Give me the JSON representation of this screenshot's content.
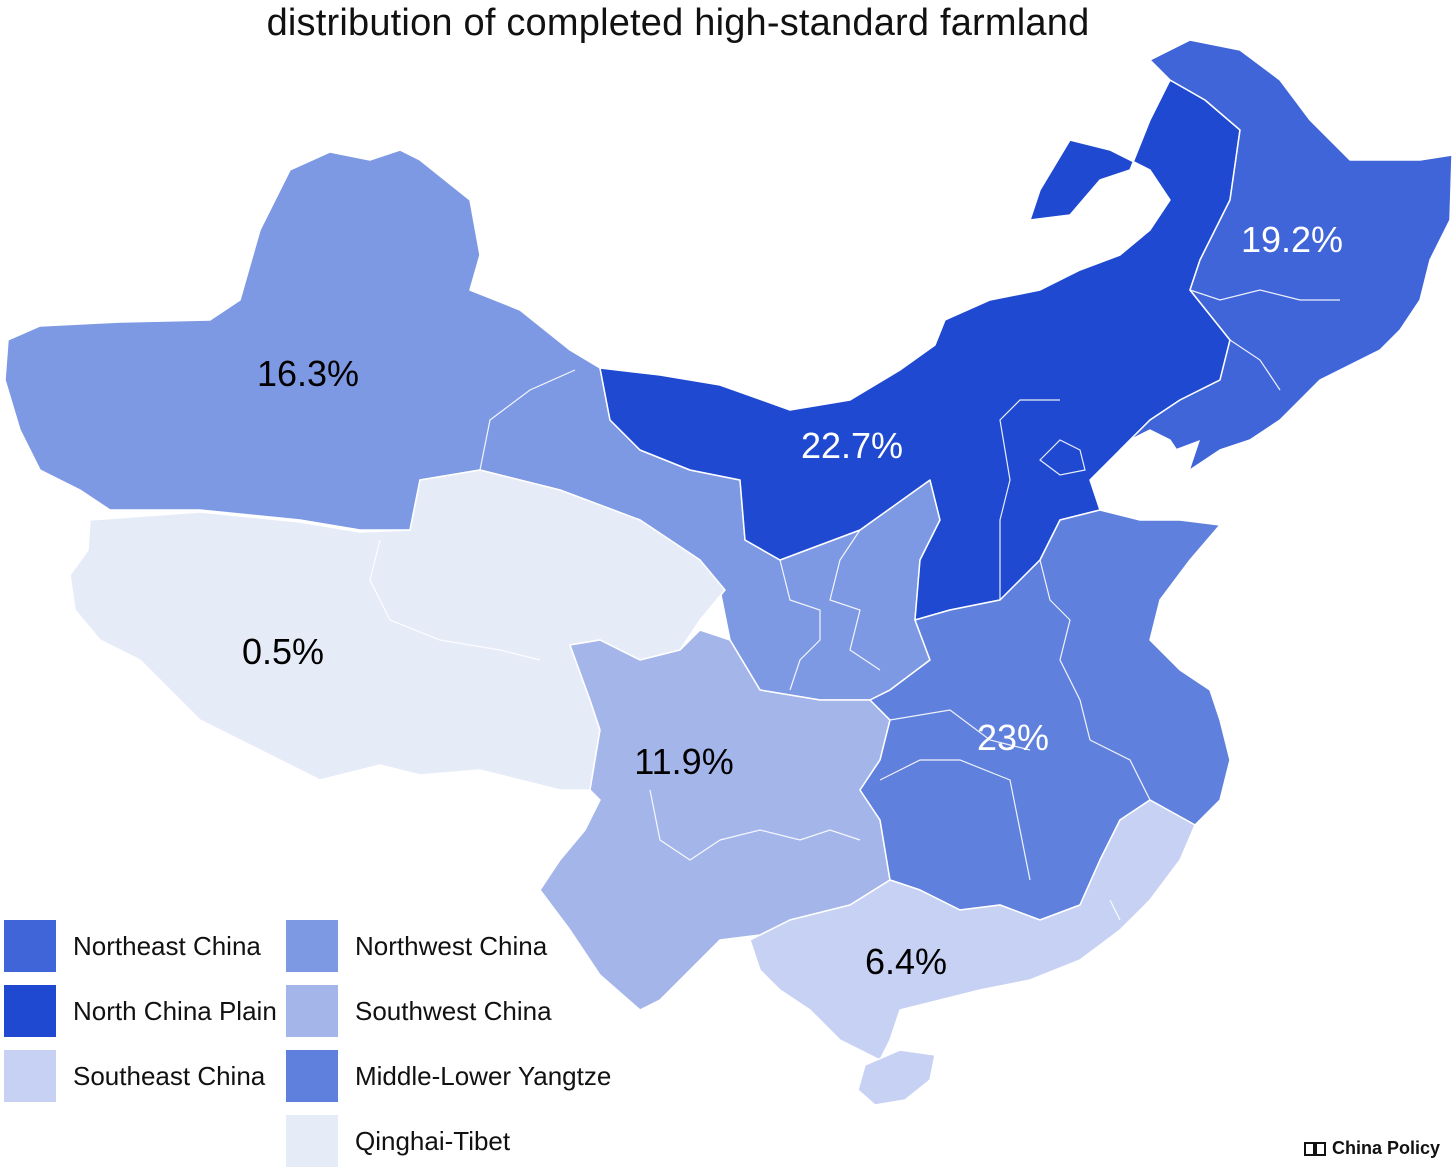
{
  "title": "distribution of completed high-standard farmland",
  "colors": {
    "northeast": "#4065d9",
    "north_china_plain": "#1e49d0",
    "northwest": "#7e99e3",
    "southwest": "#a4b5ea",
    "southeast": "#c6d1f3",
    "middle_lower_yangtze": "#6080dd",
    "qinghai_tibet": "#e6ebf8"
  },
  "regions": [
    {
      "key": "northeast",
      "label": "19.2%"
    },
    {
      "key": "north_china_plain",
      "label": "22.7%"
    },
    {
      "key": "northwest",
      "label": "16.3%"
    },
    {
      "key": "qinghai_tibet",
      "label": "0.5%"
    },
    {
      "key": "southwest",
      "label": "11.9%"
    },
    {
      "key": "middle_lower_yangtze",
      "label": "23%"
    },
    {
      "key": "southeast",
      "label": "6.4%"
    }
  ],
  "legend": [
    {
      "key": "northeast",
      "label": "Northeast China"
    },
    {
      "key": "north_china_plain",
      "label": "North China Plain"
    },
    {
      "key": "southeast",
      "label": "Southeast China"
    },
    {
      "key": "northwest",
      "label": "Northwest China"
    },
    {
      "key": "southwest",
      "label": "Southwest China"
    },
    {
      "key": "middle_lower_yangtze",
      "label": "Middle-Lower Yangtze"
    },
    {
      "key": "qinghai_tibet",
      "label": "Qinghai-Tibet"
    }
  ],
  "brand": {
    "label": "China Policy",
    "icon": "book-icon"
  }
}
